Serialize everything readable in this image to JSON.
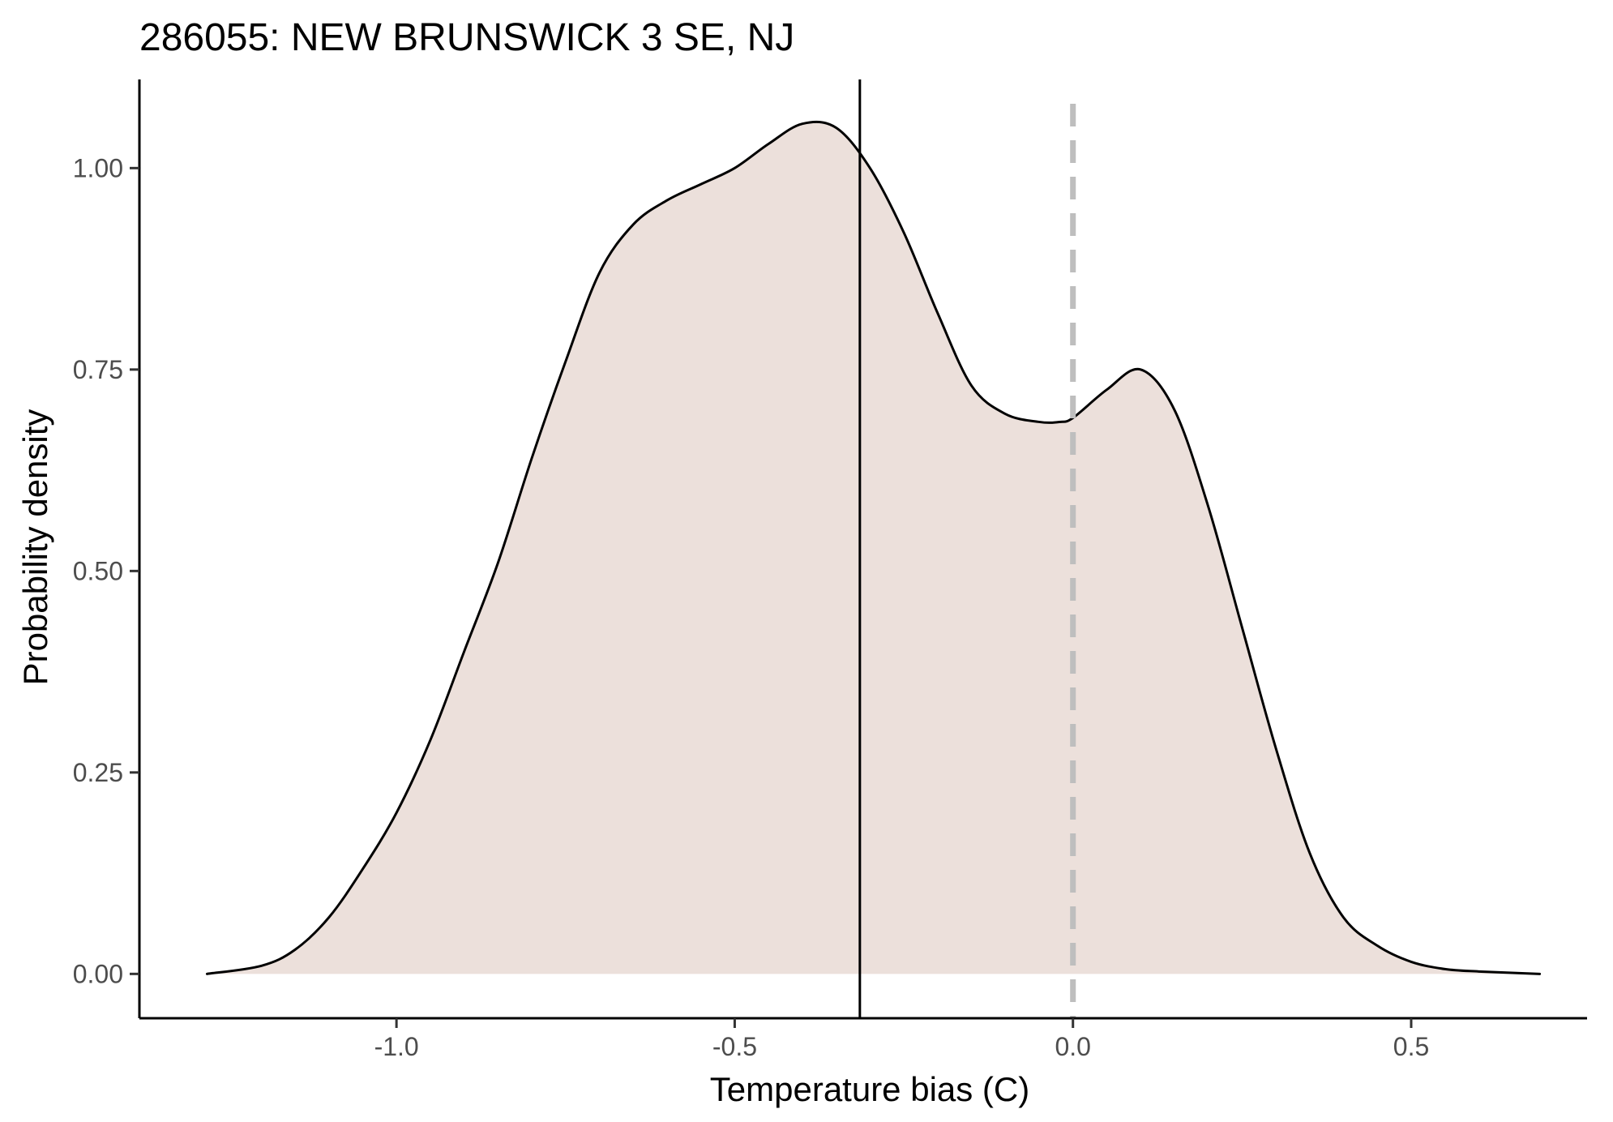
{
  "chart_data": {
    "type": "area",
    "title": "286055: NEW BRUNSWICK 3 SE, NJ",
    "xlabel": "Temperature bias (C)",
    "ylabel": "Probability density",
    "xlim": [
      -1.38,
      0.76
    ],
    "ylim": [
      -0.055,
      1.11
    ],
    "x_ticks": [
      -1.0,
      -0.5,
      0.0,
      0.5
    ],
    "x_tick_labels": [
      "-1.0",
      "-0.5",
      "0.0",
      "0.5"
    ],
    "y_ticks": [
      0.0,
      0.25,
      0.5,
      0.75,
      1.0
    ],
    "y_tick_labels": [
      "0.00",
      "0.25",
      "0.50",
      "0.75",
      "1.00"
    ],
    "grid": false,
    "legend": "none",
    "colors": {
      "fill": "#ece0db",
      "curve": "#000000",
      "mean_line": "#000000",
      "zero_line": "#bebebe"
    },
    "reference_lines": [
      {
        "x": -0.315,
        "style": "solid",
        "color": "#000000"
      },
      {
        "x": 0.0,
        "style": "dashed",
        "color": "#bebebe"
      }
    ],
    "series": [
      {
        "x": [
          -1.28,
          -1.2,
          -1.15,
          -1.1,
          -1.05,
          -1.0,
          -0.95,
          -0.9,
          -0.85,
          -0.8,
          -0.75,
          -0.7,
          -0.65,
          -0.6,
          -0.55,
          -0.5,
          -0.45,
          -0.4,
          -0.35,
          -0.3,
          -0.25,
          -0.2,
          -0.15,
          -0.1,
          -0.05,
          -0.02,
          0.0,
          0.05,
          0.1,
          0.15,
          0.2,
          0.25,
          0.3,
          0.35,
          0.4,
          0.45,
          0.5,
          0.55,
          0.6,
          0.69
        ],
        "values": [
          0.0,
          0.01,
          0.03,
          0.07,
          0.13,
          0.2,
          0.29,
          0.4,
          0.51,
          0.64,
          0.76,
          0.87,
          0.93,
          0.96,
          0.98,
          1.0,
          1.03,
          1.055,
          1.05,
          1.0,
          0.92,
          0.82,
          0.73,
          0.695,
          0.685,
          0.685,
          0.69,
          0.725,
          0.75,
          0.7,
          0.58,
          0.43,
          0.28,
          0.15,
          0.07,
          0.035,
          0.015,
          0.006,
          0.003,
          0.0
        ]
      }
    ]
  }
}
